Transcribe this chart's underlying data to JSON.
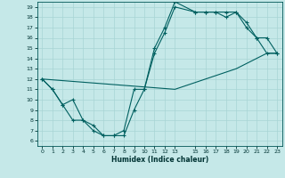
{
  "xlabel": "Humidex (Indice chaleur)",
  "background_color": "#c5e8e8",
  "grid_color": "#a8d4d4",
  "line_color": "#006060",
  "xlim": [
    -0.5,
    23.5
  ],
  "ylim": [
    5.5,
    19.5
  ],
  "xticks": [
    0,
    1,
    2,
    3,
    4,
    5,
    6,
    7,
    8,
    9,
    10,
    11,
    12,
    13,
    15,
    16,
    17,
    18,
    19,
    20,
    21,
    22,
    23
  ],
  "yticks": [
    6,
    7,
    8,
    9,
    10,
    11,
    12,
    13,
    14,
    15,
    16,
    17,
    18,
    19
  ],
  "series1_x": [
    0,
    1,
    2,
    3,
    4,
    5,
    6,
    7,
    8,
    9,
    10,
    11,
    12,
    13,
    15,
    16,
    17,
    18,
    19,
    20,
    21,
    22,
    23
  ],
  "series1_y": [
    12,
    11,
    9.5,
    10,
    8,
    7.5,
    6.5,
    6.5,
    6.5,
    9,
    11,
    14.5,
    16.5,
    19,
    18.5,
    18.5,
    18.5,
    18.5,
    18.5,
    17.5,
    16,
    14.5,
    14.5
  ],
  "series2_x": [
    0,
    1,
    2,
    3,
    4,
    5,
    6,
    7,
    8,
    9,
    10,
    11,
    12,
    13,
    15,
    16,
    17,
    18,
    19,
    20,
    21,
    22,
    23
  ],
  "series2_y": [
    12,
    11,
    9.5,
    8,
    8,
    7,
    6.5,
    6.5,
    7,
    11,
    11,
    15,
    17,
    19.5,
    18.5,
    18.5,
    18.5,
    18,
    18.5,
    17,
    16,
    16,
    14.5
  ],
  "series3_x": [
    0,
    13,
    19,
    20,
    21,
    22,
    23
  ],
  "series3_y": [
    12,
    11,
    13,
    13.5,
    14,
    14.5,
    14.5
  ]
}
